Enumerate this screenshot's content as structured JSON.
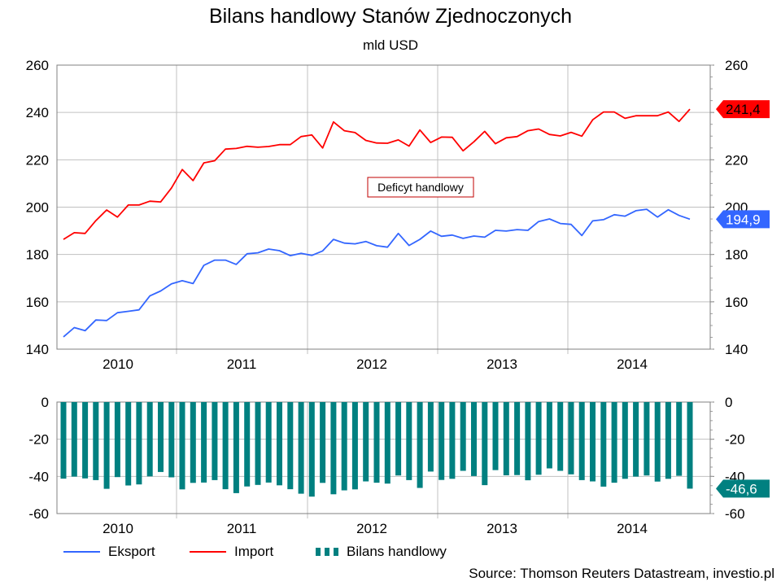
{
  "title": "Bilans handlowy Stanów Zjednoczonych",
  "subtitle": "mld USD",
  "source": "Source: Thomson Reuters Datastream, investio.pl",
  "legend": {
    "export": "Eksport",
    "import": "Import",
    "balance": "Bilans handlowy"
  },
  "annotation": "Deficyt handlowy",
  "colors": {
    "export": "#3366ff",
    "import": "#ff0000",
    "balance": "#008080",
    "grid": "#c0c0c0"
  },
  "chart_data": [
    {
      "type": "line",
      "x_ticks": [
        "2010",
        "2011",
        "2012",
        "2013",
        "2014"
      ],
      "ylim": [
        140,
        260
      ],
      "yticks": [
        140,
        160,
        180,
        200,
        220,
        240,
        260
      ],
      "grid": true,
      "x_start": "2009-12",
      "series": [
        {
          "name": "Eksport",
          "color": "#3366ff",
          "last_label": "194,9",
          "values": [
            145.2,
            149.1,
            147.8,
            152.3,
            152.1,
            155.4,
            156.0,
            156.6,
            162.5,
            164.6,
            167.6,
            168.9,
            167.7,
            175.4,
            177.6,
            177.6,
            175.8,
            180.3,
            180.7,
            182.3,
            181.6,
            179.5,
            180.5,
            179.6,
            181.5,
            186.4,
            184.8,
            184.5,
            185.5,
            183.7,
            183.1,
            188.9,
            183.8,
            186.4,
            189.9,
            187.7,
            188.2,
            186.8,
            187.8,
            187.3,
            190.2,
            189.9,
            190.5,
            190.2,
            193.9,
            195.0,
            193.1,
            192.7,
            188.0,
            194.2,
            194.7,
            196.8,
            196.2,
            198.5,
            199.1,
            195.8,
            198.9,
            196.5,
            194.9
          ]
        },
        {
          "name": "Import",
          "color": "#ff0000",
          "last_label": "241,4",
          "values": [
            186.4,
            189.2,
            188.9,
            194.3,
            198.8,
            195.8,
            200.9,
            200.9,
            202.5,
            202.2,
            208.1,
            215.9,
            211.2,
            218.7,
            219.6,
            224.5,
            224.8,
            225.7,
            225.3,
            225.6,
            226.4,
            226.4,
            229.8,
            230.5,
            225.0,
            236.0,
            232.3,
            231.5,
            228.2,
            227.1,
            227.0,
            228.4,
            225.8,
            232.6,
            227.3,
            229.6,
            229.5,
            223.8,
            227.6,
            232.0,
            226.8,
            229.3,
            229.8,
            232.3,
            233.0,
            230.7,
            230.1,
            231.6,
            230.0,
            236.9,
            240.2,
            240.2,
            237.5,
            238.6,
            238.6,
            238.6,
            240.2,
            236.2,
            241.4
          ]
        }
      ]
    },
    {
      "type": "bar",
      "x_ticks": [
        "2010",
        "2011",
        "2012",
        "2013",
        "2014"
      ],
      "ylim": [
        -60,
        0
      ],
      "yticks": [
        0,
        -20,
        -40,
        -60
      ],
      "grid": true,
      "series": [
        {
          "name": "Bilans handlowy",
          "color": "#008080",
          "last_label": "-46,6",
          "values": [
            -41.2,
            -40.1,
            -41.1,
            -42.0,
            -46.7,
            -40.4,
            -44.9,
            -44.3,
            -40.0,
            -37.6,
            -40.5,
            -47.0,
            -43.5,
            -43.3,
            -42.0,
            -46.9,
            -49.0,
            -45.4,
            -44.6,
            -43.3,
            -44.8,
            -46.9,
            -49.3,
            -50.9,
            -43.5,
            -49.6,
            -47.5,
            -47.0,
            -42.7,
            -43.4,
            -43.9,
            -39.5,
            -42.0,
            -46.2,
            -37.4,
            -41.9,
            -41.3,
            -37.0,
            -39.8,
            -44.7,
            -36.6,
            -39.4,
            -39.3,
            -42.1,
            -39.1,
            -35.7,
            -37.0,
            -38.9,
            -42.0,
            -42.7,
            -45.5,
            -43.4,
            -41.3,
            -40.1,
            -39.5,
            -42.8,
            -41.3,
            -39.7,
            -46.6
          ]
        }
      ]
    }
  ]
}
